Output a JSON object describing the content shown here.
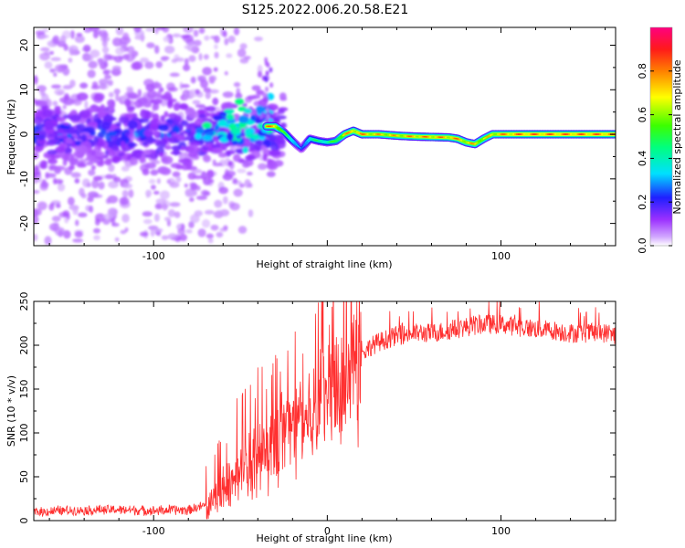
{
  "figure": {
    "title": "S125.2022.006.20.58.E21"
  },
  "chart_data": [
    {
      "type": "heatmap",
      "title": "S125.2022.006.20.58.E21",
      "xlabel": "Height of straight line (km)",
      "ylabel": "Frequency (Hz)",
      "xlim": [
        -169,
        166
      ],
      "ylim": [
        -25,
        24
      ],
      "x_ticks": [
        -100,
        0,
        100
      ],
      "x_tick_labels": [
        "-100",
        "",
        "100"
      ],
      "y_ticks": [
        -20,
        -10,
        0,
        10,
        20
      ],
      "y_tick_labels": [
        "-20",
        "-10",
        "0",
        "10",
        "20"
      ],
      "colorbar": {
        "label": "Normalized spectral amplitude",
        "range": [
          0,
          1
        ],
        "ticks": [
          0.0,
          0.2,
          0.4,
          0.6,
          0.8
        ],
        "tick_labels": [
          "0.0",
          "0.2",
          "0.4",
          "0.6",
          "0.8"
        ],
        "colormap": "gist_rainbow (white at low end)"
      },
      "ridge": {
        "description": "dominant frequency trace",
        "x": [
          -35,
          -30,
          -25,
          -20,
          -15,
          -10,
          -5,
          0,
          5,
          10,
          15,
          20,
          30,
          40,
          50,
          60,
          70,
          75,
          80,
          85,
          90,
          95,
          100,
          110,
          120,
          130,
          140,
          150,
          160,
          166
        ],
        "y": [
          1.8,
          1.8,
          0.5,
          -1.5,
          -3.3,
          -1.0,
          -1.5,
          -1.8,
          -1.5,
          0.0,
          0.8,
          0.0,
          0.0,
          -0.3,
          -0.5,
          -0.6,
          -0.7,
          -1.0,
          -1.8,
          -2.2,
          -1.0,
          0.0,
          0.0,
          0.0,
          0.0,
          0.0,
          0.0,
          0.0,
          0.0,
          0.0
        ],
        "amplitude": [
          0.85,
          0.85,
          0.55,
          0.45,
          0.25,
          0.5,
          0.5,
          0.5,
          0.6,
          0.8,
          0.85,
          0.85,
          0.8,
          0.8,
          0.85,
          0.85,
          0.85,
          0.85,
          0.8,
          0.8,
          0.75,
          0.8,
          0.85,
          0.9,
          0.9,
          0.9,
          0.9,
          0.9,
          0.9,
          0.9
        ]
      },
      "noise_region": {
        "description": "scattered low-amplitude blobs",
        "x_range": [
          -169,
          -30
        ],
        "y_center": 0,
        "y_spread": 24
      }
    },
    {
      "type": "line",
      "xlabel": "Height of straight line (km)",
      "ylabel": "SNR (10 * v/v)",
      "xlim": [
        -169,
        166
      ],
      "ylim": [
        0,
        250
      ],
      "x_ticks": [
        -100,
        0,
        100
      ],
      "x_tick_labels": [
        "-100",
        "0",
        "100"
      ],
      "y_ticks": [
        0,
        50,
        100,
        150,
        200,
        250
      ],
      "y_tick_labels": [
        "0",
        "50",
        "100",
        "150",
        "200",
        "250"
      ],
      "color": "#ff3030",
      "series": [
        {
          "x": [
            -169,
            -150,
            -120,
            -100,
            -80,
            -70,
            -65,
            -60,
            -55,
            -50,
            -45,
            -40,
            -35,
            -30,
            -25,
            -20,
            -15,
            -10,
            -5,
            0,
            5,
            10,
            15,
            20,
            25,
            30,
            40,
            50,
            60,
            70,
            80,
            90,
            100,
            110,
            120,
            130,
            140,
            150,
            160,
            166
          ],
          "values": [
            10,
            12,
            13,
            12,
            13,
            18,
            25,
            40,
            45,
            55,
            65,
            70,
            80,
            90,
            100,
            110,
            118,
            125,
            140,
            150,
            160,
            170,
            182,
            192,
            200,
            205,
            212,
            215,
            215,
            218,
            222,
            225,
            225,
            222,
            220,
            218,
            215,
            215,
            215,
            213
          ],
          "spikes": [
            {
              "x": -63,
              "y": 88
            },
            {
              "x": -60,
              "y": 62
            },
            {
              "x": -45,
              "y": 100
            },
            {
              "x": -35,
              "y": 150
            },
            {
              "x": -29,
              "y": 185
            },
            {
              "x": -27,
              "y": 170
            },
            {
              "x": -22,
              "y": 135
            },
            {
              "x": -3,
              "y": 225
            },
            {
              "x": 2,
              "y": 190
            },
            {
              "x": 93,
              "y": 250
            },
            {
              "x": 122,
              "y": 252
            }
          ]
        }
      ]
    }
  ]
}
